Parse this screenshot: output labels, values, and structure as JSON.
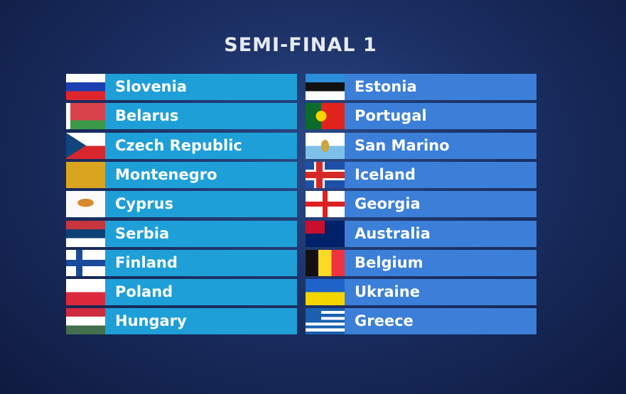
{
  "title": "SEMI-FINAL 1",
  "colors": {
    "left_bar": "#1f9fd8",
    "right_bar": "#3b7fd8"
  },
  "left": [
    {
      "name": "Slovenia",
      "flag": "slovenia-flag-icon"
    },
    {
      "name": "Belarus",
      "flag": "belarus-flag-icon"
    },
    {
      "name": "Czech Republic",
      "flag": "czech-flag-icon"
    },
    {
      "name": "Montenegro",
      "flag": "montenegro-flag-icon"
    },
    {
      "name": "Cyprus",
      "flag": "cyprus-flag-icon"
    },
    {
      "name": "Serbia",
      "flag": "serbia-flag-icon"
    },
    {
      "name": "Finland",
      "flag": "finland-flag-icon"
    },
    {
      "name": "Poland",
      "flag": "poland-flag-icon"
    },
    {
      "name": "Hungary",
      "flag": "hungary-flag-icon"
    }
  ],
  "right": [
    {
      "name": "Estonia",
      "flag": "estonia-flag-icon"
    },
    {
      "name": "Portugal",
      "flag": "portugal-flag-icon"
    },
    {
      "name": "San Marino",
      "flag": "san-marino-flag-icon"
    },
    {
      "name": "Iceland",
      "flag": "iceland-flag-icon"
    },
    {
      "name": "Georgia",
      "flag": "georgia-flag-icon"
    },
    {
      "name": "Australia",
      "flag": "australia-flag-icon"
    },
    {
      "name": "Belgium",
      "flag": "belgium-flag-icon"
    },
    {
      "name": "Ukraine",
      "flag": "ukraine-flag-icon"
    },
    {
      "name": "Greece",
      "flag": "greece-flag-icon"
    }
  ]
}
